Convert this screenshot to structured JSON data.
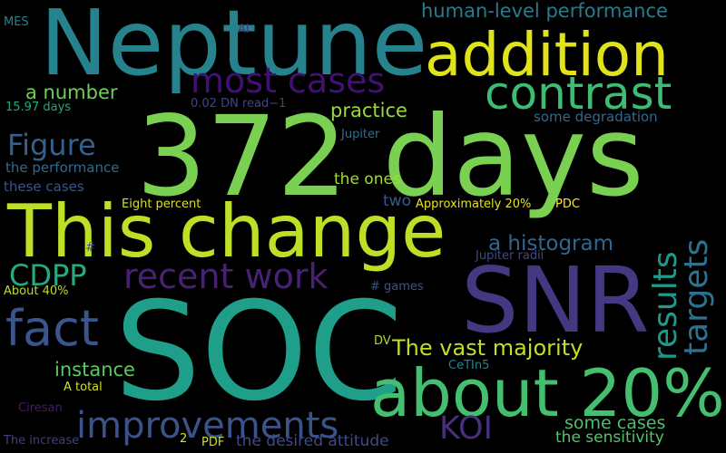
{
  "wordcloud": {
    "background": "#000000",
    "words": [
      {
        "text": "Neptune",
        "color": "#26838e"
      },
      {
        "text": "addition",
        "color": "#dfe318"
      },
      {
        "text": "human-level performance",
        "color": "#2a7a8e"
      },
      {
        "text": "most cases",
        "color": "#440f74"
      },
      {
        "text": "contrast",
        "color": "#3dbc74"
      },
      {
        "text": "372 days",
        "color": "#7ad151"
      },
      {
        "text": "This change",
        "color": "#bddf26"
      },
      {
        "text": "SNR",
        "color": "#453882"
      },
      {
        "text": "SOC",
        "color": "#1f9e89"
      },
      {
        "text": "about 20%",
        "color": "#44bf70"
      },
      {
        "text": "fact",
        "color": "#3a548c"
      },
      {
        "text": "recent work",
        "color": "#482173"
      },
      {
        "text": "CDPP",
        "color": "#25ab82"
      },
      {
        "text": "improvements",
        "color": "#3b528b"
      },
      {
        "text": "results",
        "color": "#1f9a8a"
      },
      {
        "text": "targets",
        "color": "#2c728e"
      },
      {
        "text": "a histogram",
        "color": "#32658e"
      },
      {
        "text": "The vast majority",
        "color": "#c2df23"
      },
      {
        "text": "KOI",
        "color": "#472f7d"
      },
      {
        "text": "instance",
        "color": "#5ec962"
      },
      {
        "text": "practice",
        "color": "#9bd93c"
      },
      {
        "text": "Figure",
        "color": "#355f8d"
      },
      {
        "text": "a number",
        "color": "#6ece58"
      },
      {
        "text": "MES",
        "color": "#26818e"
      },
      {
        "text": "AI",
        "color": "#46337e"
      },
      {
        "text": "15.97 days",
        "color": "#22a884"
      },
      {
        "text": "0.02 DN read−1",
        "color": "#414487"
      },
      {
        "text": "some degradation",
        "color": "#31688e"
      },
      {
        "text": "Jupiter",
        "color": "#2d708e"
      },
      {
        "text": "the performance",
        "color": "#2f6b8e"
      },
      {
        "text": "these cases",
        "color": "#39558c"
      },
      {
        "text": "the ones",
        "color": "#a0da39"
      },
      {
        "text": "two",
        "color": "#38598c"
      },
      {
        "text": "Eight percent",
        "color": "#d8e219"
      },
      {
        "text": "Approximately 20%",
        "color": "#e5e419"
      },
      {
        "text": "PDC",
        "color": "#fde725"
      },
      {
        "text": "#",
        "color": "#3e4a89"
      },
      {
        "text": "Jupiter radii",
        "color": "#3e4989"
      },
      {
        "text": "About 40%",
        "color": "#b8de29"
      },
      {
        "text": "# games",
        "color": "#3b528b"
      },
      {
        "text": "DV",
        "color": "#aadc32"
      },
      {
        "text": "CeTIn5",
        "color": "#26828e"
      },
      {
        "text": "A total",
        "color": "#d0e11c"
      },
      {
        "text": "Ciresan",
        "color": "#48186a"
      },
      {
        "text": "some cases",
        "color": "#4ac16d"
      },
      {
        "text": "The increase",
        "color": "#433e85"
      },
      {
        "text": "2",
        "color": "#d5e21a"
      },
      {
        "text": "PDF",
        "color": "#c8e020"
      },
      {
        "text": "the desired attitude",
        "color": "#3e4989"
      },
      {
        "text": "the sensitivity",
        "color": "#52c569"
      }
    ]
  }
}
